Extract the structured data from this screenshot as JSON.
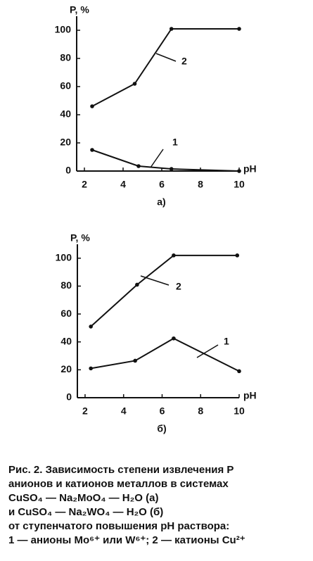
{
  "chart_data": [
    {
      "type": "line",
      "subtitle": "а)",
      "y_label": "P, %",
      "x_label": "pH",
      "xlim": [
        1.6,
        10
      ],
      "ylim": [
        0,
        110
      ],
      "xticks": [
        2,
        4,
        6,
        8,
        10
      ],
      "yticks": [
        0,
        20,
        40,
        60,
        80,
        100
      ],
      "series": [
        {
          "name": "1",
          "color": "#111111",
          "x": [
            2.4,
            4.8,
            6.5,
            10
          ],
          "values": [
            15,
            3.5,
            1.5,
            0
          ]
        },
        {
          "name": "2",
          "color": "#111111",
          "x": [
            2.4,
            4.6,
            6.5,
            10
          ],
          "values": [
            46,
            62,
            101,
            101
          ]
        }
      ]
    },
    {
      "type": "line",
      "subtitle": "б)",
      "y_label": "P, %",
      "x_label": "pH",
      "xlim": [
        1.6,
        10
      ],
      "ylim": [
        0,
        110
      ],
      "xticks": [
        2,
        4,
        6,
        8,
        10
      ],
      "yticks": [
        0,
        20,
        40,
        60,
        80,
        100
      ],
      "series": [
        {
          "name": "1",
          "color": "#111111",
          "x": [
            2.3,
            4.6,
            6.6,
            10
          ],
          "values": [
            21,
            26.5,
            42.5,
            19
          ]
        },
        {
          "name": "2",
          "color": "#111111",
          "x": [
            2.3,
            4.7,
            6.6,
            9.9
          ],
          "values": [
            51,
            81,
            102,
            102
          ]
        }
      ]
    }
  ],
  "caption": [
    "Рис. 2. Зависимость степени извлечения P",
    "анионов и катионов металлов в системах",
    "CuSO₄ — Na₂MoO₄ — H₂O (а)",
    "и CuSO₄ — Na₂WO₄ — H₂O (б)",
    "от ступенчатого повышения pH раствора:",
    "1 — анионы Mo⁶⁺ или W⁶⁺; 2 — катионы Cu²⁺"
  ]
}
